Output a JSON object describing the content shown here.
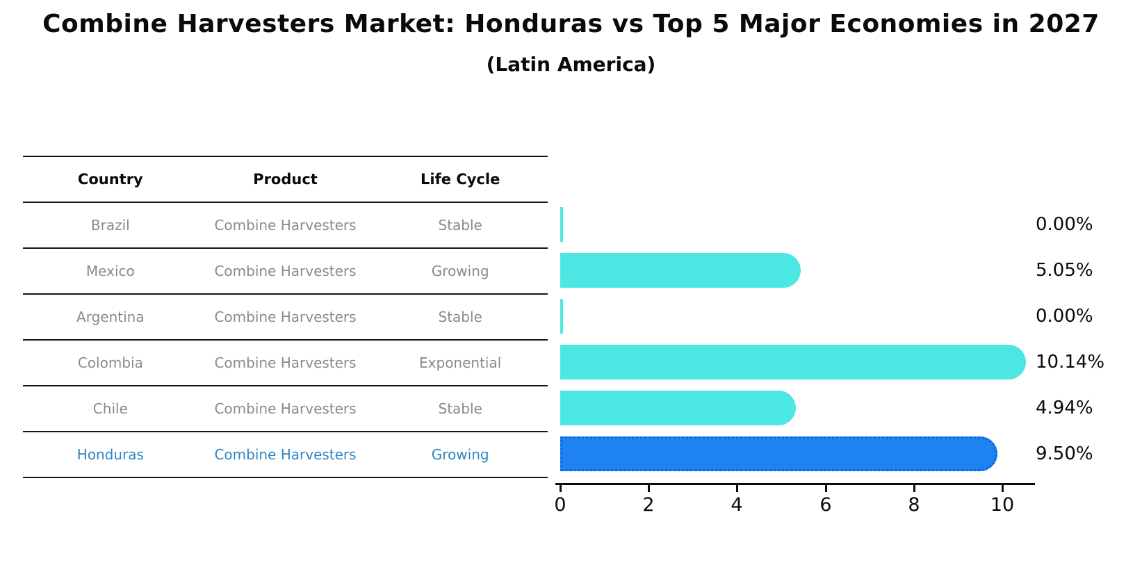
{
  "title": "Combine Harvesters Market: Honduras vs Top 5 Major Economies in 2027",
  "subtitle": "(Latin America)",
  "table": {
    "headers": [
      "Country",
      "Product",
      "Life Cycle"
    ],
    "rows": [
      {
        "country": "Brazil",
        "product": "Combine Harvesters",
        "life_cycle": "Stable",
        "highlight": false
      },
      {
        "country": "Mexico",
        "product": "Combine Harvesters",
        "life_cycle": "Growing",
        "highlight": false
      },
      {
        "country": "Argentina",
        "product": "Combine Harvesters",
        "life_cycle": "Stable",
        "highlight": false
      },
      {
        "country": "Colombia",
        "product": "Combine Harvesters",
        "life_cycle": "Exponential",
        "highlight": false
      },
      {
        "country": "Chile",
        "product": "Combine Harvesters",
        "life_cycle": "Stable",
        "highlight": true
      }
    ]
  },
  "chart_data": {
    "type": "bar",
    "orientation": "horizontal",
    "title": "Combine Harvesters Market: Honduras vs Top 5 Major Economies in 2027",
    "subtitle": "(Latin America)",
    "categories": [
      "Brazil",
      "Mexico",
      "Argentina",
      "Colombia",
      "Chile",
      "Honduras"
    ],
    "values": [
      0.0,
      5.05,
      0.0,
      10.14,
      4.94,
      9.5
    ],
    "value_labels": [
      "0.00%",
      "5.05%",
      "0.00%",
      "10.14%",
      "4.94%",
      "9.50%"
    ],
    "unit": "percent",
    "xlim": [
      0,
      10.65
    ],
    "xticks": [
      0,
      2,
      4,
      6,
      8,
      10
    ],
    "highlight_index": 5,
    "legend": "none",
    "grid": "off",
    "colors": {
      "bar": "#4DE7E3",
      "highlight_bar": "#1E82F0",
      "highlight_bar_border": "#0C64DA",
      "table_text": "#8a8a8a",
      "highlight_text": "#2E86C1",
      "text": "#0a0a0a"
    }
  }
}
